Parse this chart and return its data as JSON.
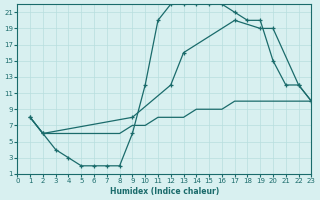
{
  "xlabel": "Humidex (Indice chaleur)",
  "bg_color": "#d8f0f0",
  "grid_color": "#b8dede",
  "line_color": "#1a6b6b",
  "xlim": [
    0,
    23
  ],
  "ylim": [
    1,
    22
  ],
  "xticks": [
    0,
    1,
    2,
    3,
    4,
    5,
    6,
    7,
    8,
    9,
    10,
    11,
    12,
    13,
    14,
    15,
    16,
    17,
    18,
    19,
    20,
    21,
    22,
    23
  ],
  "yticks": [
    1,
    3,
    5,
    7,
    9,
    11,
    13,
    15,
    17,
    19,
    21
  ],
  "line1_x": [
    1,
    2,
    3,
    4,
    5,
    6,
    7,
    8,
    9,
    10,
    11,
    12,
    13,
    14,
    15,
    16,
    17,
    18,
    19,
    20,
    21,
    22,
    23
  ],
  "line1_y": [
    8,
    6,
    4,
    3,
    2,
    2,
    2,
    2,
    6,
    12,
    20,
    22,
    22,
    22,
    22,
    22,
    21,
    20,
    20,
    15,
    12,
    12,
    10
  ],
  "line2_x": [
    1,
    2,
    9,
    12,
    13,
    17,
    19,
    20,
    22,
    23
  ],
  "line2_y": [
    8,
    6,
    8,
    12,
    16,
    20,
    19,
    19,
    12,
    10
  ],
  "line3_x": [
    1,
    2,
    3,
    4,
    5,
    6,
    7,
    8,
    9,
    10,
    11,
    12,
    13,
    14,
    15,
    16,
    17,
    18,
    19,
    20,
    21,
    22,
    23
  ],
  "line3_y": [
    8,
    6,
    6,
    6,
    6,
    6,
    6,
    6,
    7,
    7,
    8,
    8,
    8,
    9,
    9,
    9,
    10,
    10,
    10,
    10,
    10,
    10,
    10
  ]
}
